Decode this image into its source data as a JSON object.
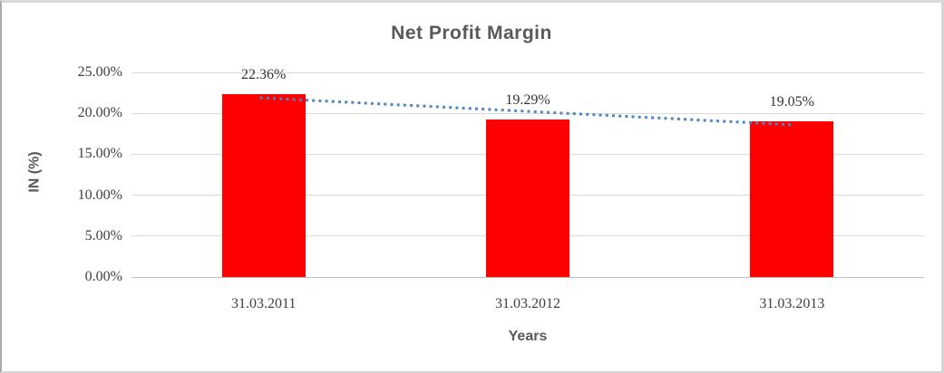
{
  "chart_data": {
    "type": "bar",
    "title": "Net Profit Margin",
    "xlabel": "Years",
    "ylabel": "IN (%)",
    "categories": [
      "31.03.2011",
      "31.03.2012",
      "31.03.2013"
    ],
    "values": [
      22.36,
      19.29,
      19.05
    ],
    "data_labels": [
      "22.36%",
      "19.29%",
      "19.05%"
    ],
    "ytick_labels": [
      "0.00%",
      "5.00%",
      "10.00%",
      "15.00%",
      "20.00%",
      "25.00%"
    ],
    "ytick_values": [
      0,
      5,
      10,
      15,
      20,
      25
    ],
    "ylim": [
      0,
      25
    ],
    "grid": true,
    "legend_position": "none",
    "trendline": {
      "type": "linear",
      "style": "dotted",
      "start_value": 21.9,
      "end_value": 18.6
    }
  },
  "colors": {
    "bar": "#ff0000",
    "trendline": "#4a86c8",
    "gridline": "#d9d9d9",
    "axis_line": "#bfbfbf",
    "title_text": "#595959",
    "tick_text": "#404040",
    "frame_border": "#d9d9d9"
  }
}
